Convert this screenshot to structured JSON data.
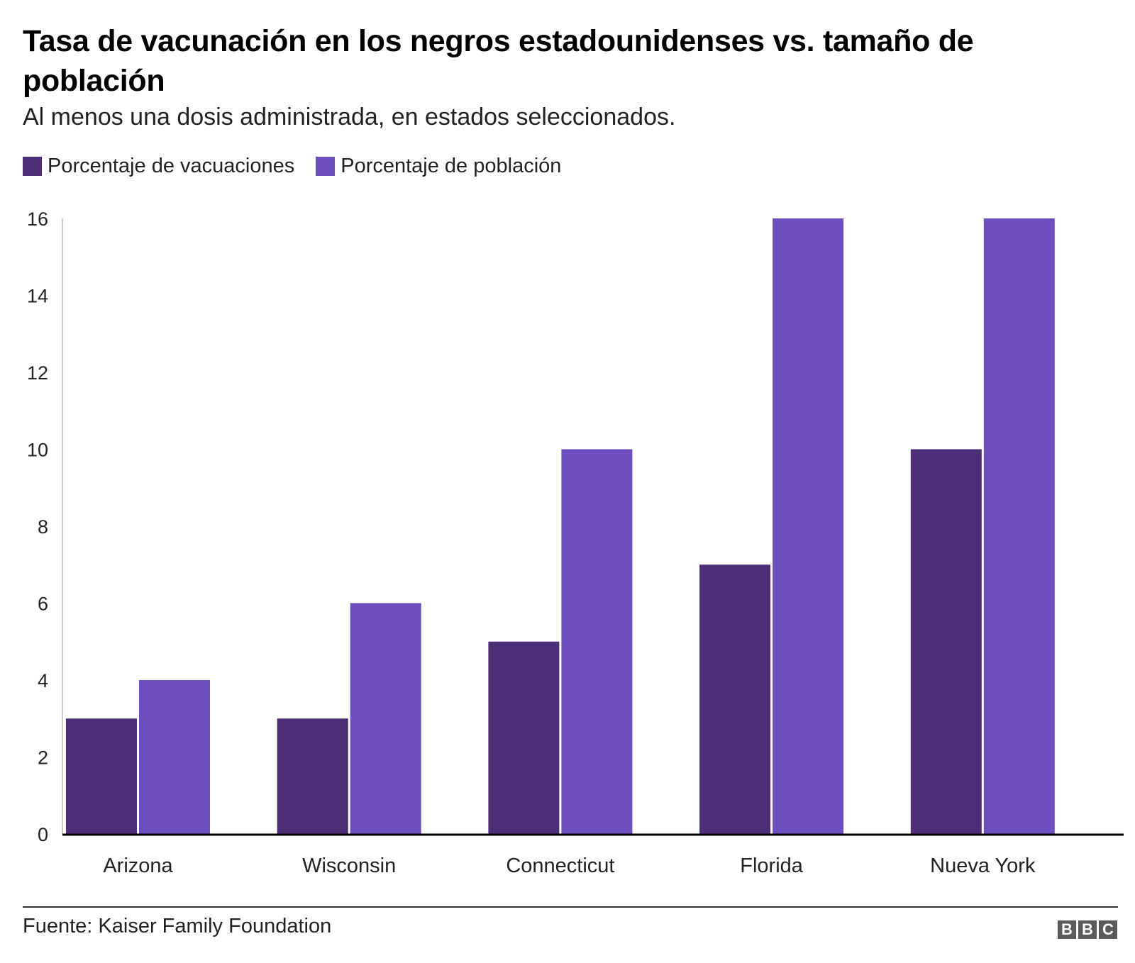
{
  "header": {
    "title": "Tasa de vacunación en los negros estadounidenses vs. tamaño de población",
    "subtitle": "Al menos una dosis administrada, en estados seleccionados."
  },
  "legend": [
    {
      "label": "Porcentaje de vacuaciones",
      "color": "#4e2d77"
    },
    {
      "label": "Porcentaje de población",
      "color": "#6e4ebe"
    }
  ],
  "chart_data": {
    "type": "bar",
    "title": "Tasa de vacunación en los negros estadounidenses vs. tamaño de población",
    "subtitle": "Al menos una dosis administrada, en estados seleccionados.",
    "xlabel": "",
    "ylabel": "",
    "categories": [
      "Arizona",
      "Wisconsin",
      "Connecticut",
      "Florida",
      "Nueva York"
    ],
    "series": [
      {
        "name": "Porcentaje de vacuaciones",
        "color": "#4e2d77",
        "values": [
          3,
          3,
          5,
          7,
          10
        ]
      },
      {
        "name": "Porcentaje de población",
        "color": "#6e4ebe",
        "values": [
          4,
          6,
          10,
          16,
          16
        ]
      }
    ],
    "ylim": [
      0,
      16
    ],
    "yticks": [
      0,
      2,
      4,
      6,
      8,
      10,
      12,
      14,
      16
    ],
    "grid": false,
    "legend_position": "top-left"
  },
  "footer": {
    "source": "Fuente: Kaiser Family Foundation",
    "logo_letters": [
      "B",
      "B",
      "C"
    ]
  }
}
